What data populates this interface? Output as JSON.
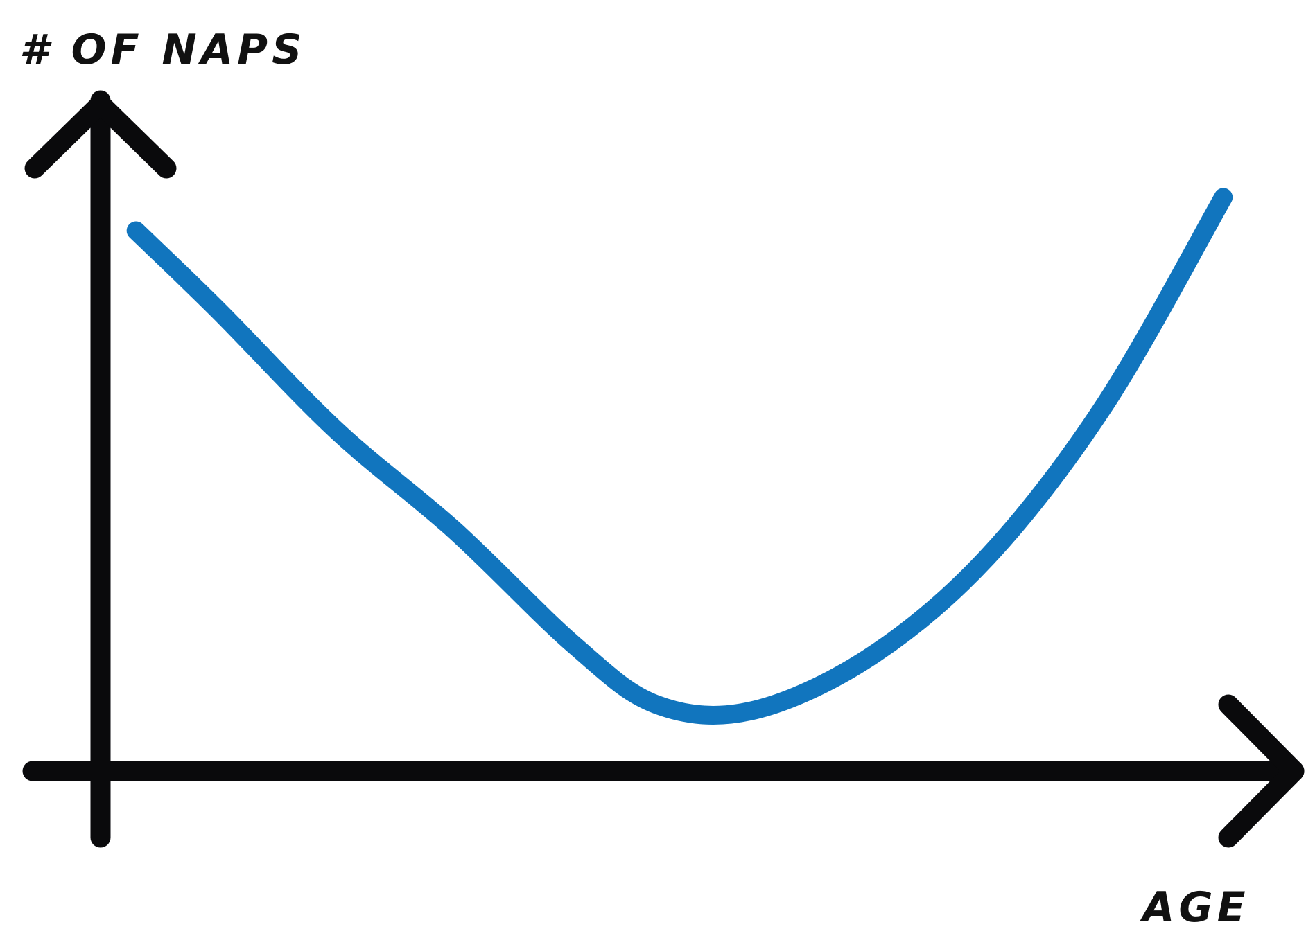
{
  "chart_data": {
    "type": "line",
    "title": "",
    "ylabel": "# OF NAPS",
    "xlabel": "AGE",
    "grid": false,
    "legend": "none",
    "xlim": [
      0,
      100
    ],
    "ylim": [
      0,
      100
    ],
    "series": [
      {
        "color": "#1175BE",
        "x": [
          3,
          10,
          20,
          30,
          40,
          47,
          55,
          65,
          75,
          85,
          95
        ],
        "y": [
          81,
          69,
          51,
          36,
          19,
          10,
          9,
          17,
          32,
          55,
          86
        ]
      }
    ],
    "colors": {
      "axis": "#0A0A0C",
      "curve": "#1175BE"
    }
  }
}
